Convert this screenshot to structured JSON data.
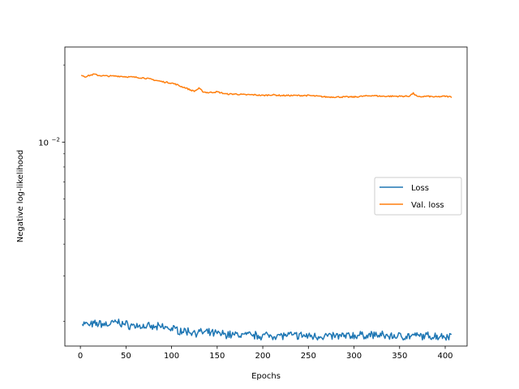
{
  "chart_data": {
    "type": "line",
    "title": "",
    "xlabel": "Epochs",
    "ylabel": "Negative log-likelihood",
    "yscale": "log",
    "xlim": [
      -17,
      424
    ],
    "ylim": [
      0.0016,
      0.0235
    ],
    "x_ticks": [
      0,
      50,
      100,
      150,
      200,
      250,
      300,
      350,
      400
    ],
    "y_major_tick": {
      "value": 0.01,
      "base": "10",
      "exponent": "−2"
    },
    "y_minor_ticks": [
      0.002,
      0.003,
      0.004,
      0.005,
      0.006,
      0.007,
      0.008,
      0.009,
      0.02
    ],
    "grid": false,
    "legend_position": "center right",
    "series": [
      {
        "name": "Loss",
        "color": "#1f77b4",
        "points": [
          [
            2,
            0.00197
          ],
          [
            10,
            0.00193
          ],
          [
            20,
            0.00196
          ],
          [
            30,
            0.00194
          ],
          [
            40,
            0.00199
          ],
          [
            50,
            0.00194
          ],
          [
            60,
            0.00192
          ],
          [
            70,
            0.00191
          ],
          [
            80,
            0.00189
          ],
          [
            90,
            0.0019
          ],
          [
            100,
            0.00187
          ],
          [
            110,
            0.00184
          ],
          [
            120,
            0.00182
          ],
          [
            130,
            0.00181
          ],
          [
            140,
            0.0018
          ],
          [
            150,
            0.00179
          ],
          [
            160,
            0.00178
          ],
          [
            170,
            0.00177
          ],
          [
            180,
            0.00177
          ],
          [
            190,
            0.00176
          ],
          [
            200,
            0.00176
          ],
          [
            210,
            0.00176
          ],
          [
            220,
            0.00176
          ],
          [
            230,
            0.00176
          ],
          [
            240,
            0.00176
          ],
          [
            250,
            0.00175
          ],
          [
            260,
            0.00175
          ],
          [
            270,
            0.00175
          ],
          [
            280,
            0.00175
          ],
          [
            290,
            0.00175
          ],
          [
            300,
            0.00176
          ],
          [
            310,
            0.00176
          ],
          [
            320,
            0.00177
          ],
          [
            330,
            0.00176
          ],
          [
            340,
            0.00175
          ],
          [
            350,
            0.00175
          ],
          [
            360,
            0.00175
          ],
          [
            370,
            0.00175
          ],
          [
            380,
            0.00175
          ],
          [
            390,
            0.00175
          ],
          [
            400,
            0.00175
          ],
          [
            407,
            0.00176
          ]
        ]
      },
      {
        "name": "Val. loss",
        "color": "#ff7f0e",
        "points": [
          [
            1,
            0.0183
          ],
          [
            5,
            0.018
          ],
          [
            10,
            0.0182
          ],
          [
            15,
            0.0184
          ],
          [
            20,
            0.0182
          ],
          [
            30,
            0.0181
          ],
          [
            40,
            0.0181
          ],
          [
            50,
            0.018
          ],
          [
            60,
            0.0179
          ],
          [
            70,
            0.0178
          ],
          [
            80,
            0.0175
          ],
          [
            90,
            0.0172
          ],
          [
            100,
            0.017
          ],
          [
            105,
            0.0168
          ],
          [
            110,
            0.0165
          ],
          [
            115,
            0.0163
          ],
          [
            120,
            0.016
          ],
          [
            125,
            0.0158
          ],
          [
            130,
            0.0162
          ],
          [
            135,
            0.0157
          ],
          [
            140,
            0.0156
          ],
          [
            150,
            0.0157
          ],
          [
            160,
            0.0154
          ],
          [
            170,
            0.0154
          ],
          [
            180,
            0.0153
          ],
          [
            190,
            0.0153
          ],
          [
            200,
            0.0152
          ],
          [
            210,
            0.0153
          ],
          [
            220,
            0.0152
          ],
          [
            230,
            0.0152
          ],
          [
            240,
            0.0152
          ],
          [
            250,
            0.0152
          ],
          [
            260,
            0.0151
          ],
          [
            270,
            0.015
          ],
          [
            280,
            0.015
          ],
          [
            290,
            0.015
          ],
          [
            300,
            0.015
          ],
          [
            310,
            0.0151
          ],
          [
            320,
            0.0152
          ],
          [
            330,
            0.0151
          ],
          [
            340,
            0.0151
          ],
          [
            350,
            0.0151
          ],
          [
            360,
            0.0151
          ],
          [
            365,
            0.0155
          ],
          [
            370,
            0.015
          ],
          [
            380,
            0.0151
          ],
          [
            390,
            0.015
          ],
          [
            400,
            0.0151
          ],
          [
            407,
            0.015
          ]
        ]
      }
    ]
  }
}
